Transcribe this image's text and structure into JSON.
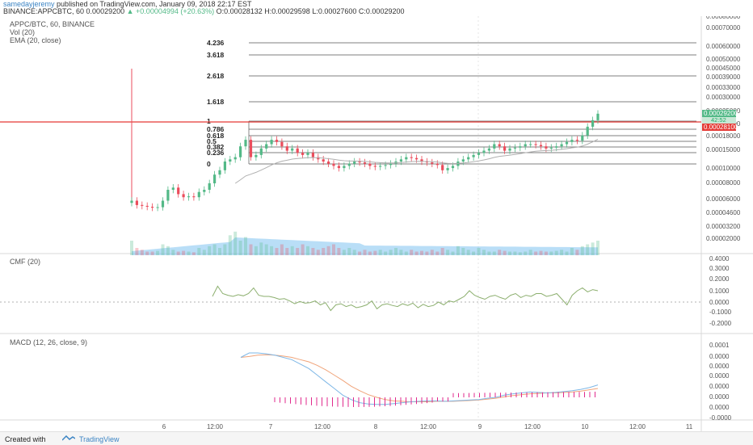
{
  "header": {
    "username": "samedayjeremy",
    "published_text": "published on TradingView.com, January 09, 2018 22:17 EST",
    "symbol": "BINANCE:APPCBTC, 60",
    "last": "0.00029200",
    "change": "+0.00004994 (+20.63%)",
    "o_label": "O:",
    "o": "0.00028132",
    "h_label": "H:",
    "h": "0.00029598",
    "l_label": "L:",
    "l": "0.00027600",
    "c_label": "C:",
    "c": "0.00029200"
  },
  "legend": {
    "line1": "APPC/BTC, 60, BINANCE",
    "line2": "Vol (20)",
    "line3": "EMA (20, close)",
    "cmf": "CMF (20)",
    "macd": "MACD (12, 26, close, 9)"
  },
  "colors": {
    "up": "#53b987",
    "down": "#eb4d5c",
    "volume_ma": "#7fc2f0",
    "cmf_line": "#8caf6e",
    "macd_line": "#7eb7e6",
    "signal_line": "#f0a47a",
    "hist": "#e0298d",
    "fib": "#555555",
    "hline": "#e53935",
    "ema": "#b0b0b0"
  },
  "footer": {
    "created_with": "Created with",
    "brand": "TradingView"
  },
  "chart_data": [
    {
      "type": "candlestick",
      "title": "APPC/BTC, 60, BINANCE",
      "x_ticks": [
        "6",
        "12:00",
        "7",
        "12:00",
        "8",
        "12:00",
        "9",
        "12:00",
        "10",
        "12:00",
        "11"
      ],
      "y_ticks": [
        "0.00080000",
        "0.00070000",
        "0.00060000",
        "0.00050000",
        "0.00045000",
        "0.00039000",
        "0.00033000",
        "0.00030000",
        "0.00025000",
        "0.00021000",
        "0.00018000",
        "0.00015000",
        "0.00010000",
        "0.00008000",
        "0.00006000",
        "0.00004600",
        "0.00003200",
        "0.00002000"
      ],
      "price_labels": {
        "last": "0.00029200",
        "countdown": "42:52",
        "horizontal_line": "0.00028100"
      },
      "fib_levels": [
        "4.236",
        "3.618",
        "2.618",
        "1.618",
        "1",
        "0.786",
        "0.618",
        "0.5",
        "0.382",
        "0.236",
        "0"
      ],
      "candles_close": [
        9e-05,
        8e-05,
        7.8e-05,
        7.6e-05,
        7.4e-05,
        7.5e-05,
        9e-05,
        0.000115,
        0.00012,
        0.000105,
        9.8e-05,
        0.0001,
        9.8e-05,
        0.00011,
        0.000115,
        0.00013,
        0.00015,
        0.00016,
        0.00018,
        0.000185,
        0.00019,
        0.000215,
        0.00023,
        0.00019,
        0.000195,
        0.00021,
        0.00022,
        0.00023,
        0.000225,
        0.000215,
        0.000205,
        0.00021,
        0.0002,
        0.000195,
        0.0002,
        0.00019,
        0.000185,
        0.00018,
        0.000175,
        0.00017,
        0.000165,
        0.00017,
        0.000175,
        0.00018,
        0.000178,
        0.000175,
        0.00017,
        0.000168,
        0.00017,
        0.000172,
        0.000175,
        0.00018,
        0.000185,
        0.00019,
        0.000188,
        0.000185,
        0.00018,
        0.000178,
        0.000175,
        0.000172,
        0.00016,
        0.000165,
        0.00017,
        0.00018,
        0.000185,
        0.00019,
        0.000195,
        0.0002,
        0.000205,
        0.00021,
        0.00022,
        0.000215,
        0.000205,
        0.00021,
        0.000212,
        0.000215,
        0.00022,
        0.00022,
        0.000218,
        0.000215,
        0.00021,
        0.000212,
        0.000215,
        0.00022,
        0.000225,
        0.00023,
        0.000228,
        0.00024,
        0.00026,
        0.000275,
        0.00029
      ],
      "cmf": {
        "y_ticks": [
          "0.4000",
          "0.3000",
          "0.2000",
          "0.1000",
          "0.0000",
          "-0.1000",
          "-0.2000"
        ],
        "range": [
          -0.3,
          0.4
        ]
      },
      "macd": {
        "y_ticks": [
          "0.0001",
          "0.0000",
          "0.0000",
          "0.0000",
          "0.0000",
          "0.0000",
          "0.0000",
          "-0.0000"
        ]
      }
    }
  ]
}
